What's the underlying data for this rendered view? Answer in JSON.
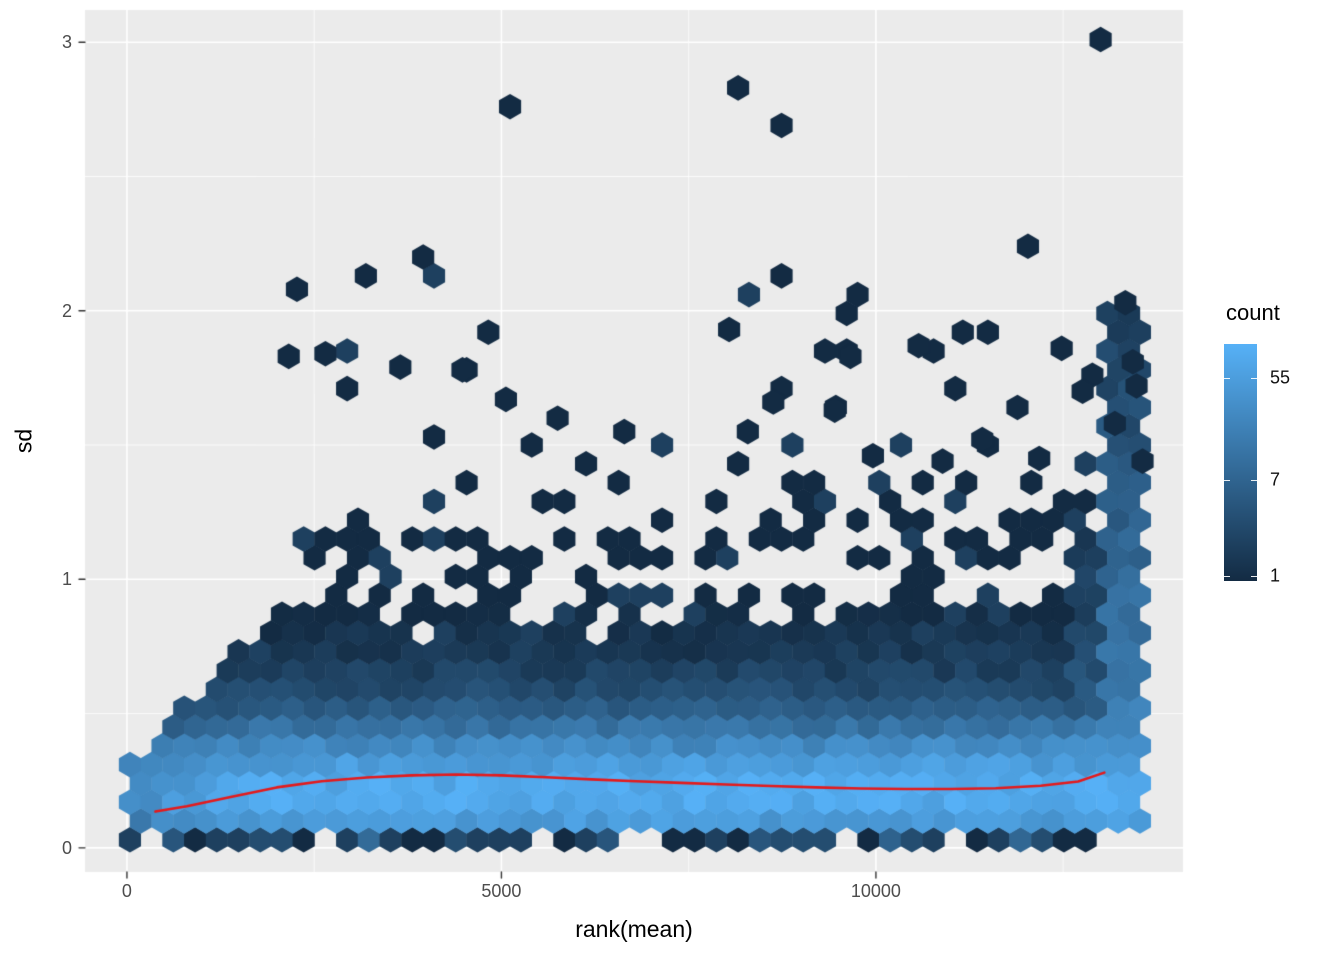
{
  "figure": {
    "background": "#FFFFFF",
    "panel_background": "#EBEBEB",
    "grid_color": "#FFFFFF",
    "tick_color": "#333333",
    "tick_label_color": "#4D4D4D"
  },
  "chart_data": {
    "type": "hexbin",
    "title": "",
    "xlabel": "rank(mean)",
    "ylabel": "sd",
    "x_ticks": [
      0,
      5000,
      10000
    ],
    "x_minor": [
      2500,
      7500,
      12500
    ],
    "y_ticks": [
      0,
      1,
      2,
      3
    ],
    "y_minor": [
      0.5,
      1.5,
      2.5
    ],
    "xlim": [
      -560,
      14100
    ],
    "ylim": [
      -0.09,
      3.12
    ],
    "colors": {
      "low": "#132B43",
      "high": "#56B1F7"
    },
    "legend": {
      "title": "count",
      "breaks": [
        55,
        7,
        1
      ],
      "range": [
        0.9,
        110
      ]
    },
    "hex": {
      "dx": 290,
      "dy": 0.07,
      "x0": 40,
      "y0": 0.03,
      "x_max": 13590
    },
    "seed": 11,
    "density": {
      "band_peak": 0.17,
      "band_amp": 62,
      "sigma_lo": 0.075,
      "sigma_hi": 0.13,
      "tail_amp": 9,
      "tail_start": 0.25,
      "tail_decay": 0.28,
      "atten_base": 0.35,
      "atten_scale": 2800,
      "env_a": 0.28,
      "env_b": 0.00032,
      "env_xcut": 2300,
      "right_x": 13020,
      "right_amp": 34,
      "right_decay": 0.7,
      "right_ymax": 2.05,
      "right2_x": 12550,
      "right2_amp": 12,
      "right2_decay": 0.55,
      "right2_ymax": 1.2,
      "out_amp": 0.16,
      "out_start": 1.0,
      "out_decay": 0.5,
      "speckle_gap": 0.22,
      "noise_lo": 0.7,
      "noise_hi": 0.6,
      "cap": 78,
      "color_log_max": 80
    },
    "outliers": [
      [
        13000,
        3.01
      ],
      [
        12030,
        2.24
      ],
      [
        3190,
        2.13
      ],
      [
        2270,
        2.08
      ],
      [
        13330,
        2.03
      ],
      [
        8040,
        1.93
      ],
      [
        11160,
        1.92
      ],
      [
        10570,
        1.87
      ],
      [
        12480,
        1.86
      ],
      [
        2650,
        1.84
      ],
      [
        2160,
        1.83
      ],
      [
        9660,
        1.83
      ],
      [
        13430,
        1.81
      ],
      [
        3650,
        1.79
      ],
      [
        4480,
        1.78
      ],
      [
        12890,
        1.76
      ],
      [
        13480,
        1.72
      ],
      [
        12760,
        1.7
      ],
      [
        5060,
        1.67
      ],
      [
        8630,
        1.66
      ],
      [
        11890,
        1.64
      ],
      [
        9450,
        1.63
      ],
      [
        5750,
        1.6
      ],
      [
        13190,
        1.58
      ],
      [
        6640,
        1.55
      ],
      [
        8290,
        1.55
      ],
      [
        4100,
        1.53
      ],
      [
        11420,
        1.52
      ],
      [
        9960,
        1.46
      ],
      [
        12180,
        1.45
      ],
      [
        13560,
        1.44
      ],
      [
        10890,
        1.44
      ]
    ],
    "smooth": {
      "color": "#E41A1C",
      "points": [
        [
          380,
          0.135
        ],
        [
          800,
          0.155
        ],
        [
          1400,
          0.19
        ],
        [
          2000,
          0.225
        ],
        [
          2600,
          0.248
        ],
        [
          3200,
          0.262
        ],
        [
          3800,
          0.27
        ],
        [
          4400,
          0.273
        ],
        [
          5000,
          0.27
        ],
        [
          5600,
          0.263
        ],
        [
          6200,
          0.255
        ],
        [
          6800,
          0.248
        ],
        [
          7400,
          0.242
        ],
        [
          8000,
          0.236
        ],
        [
          8600,
          0.23
        ],
        [
          9200,
          0.225
        ],
        [
          9800,
          0.221
        ],
        [
          10400,
          0.219
        ],
        [
          11000,
          0.219
        ],
        [
          11600,
          0.222
        ],
        [
          12200,
          0.231
        ],
        [
          12700,
          0.247
        ],
        [
          13050,
          0.28
        ]
      ]
    }
  }
}
